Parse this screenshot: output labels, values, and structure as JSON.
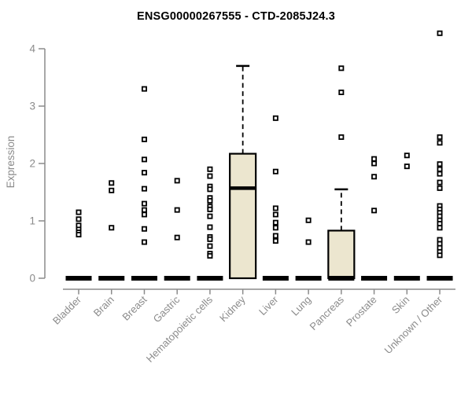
{
  "chart_data": {
    "type": "boxplot",
    "title": "ENSG00000267555 - CTD-2085J24.3",
    "ylabel": "Expression",
    "xlabel": "",
    "ylim": [
      0,
      4.3
    ],
    "yticks": [
      0,
      1,
      2,
      3,
      4
    ],
    "grid": false,
    "legend": "none",
    "colors": {
      "box_fill": "#ece6cf",
      "box_stroke": "#000000",
      "median": "#000000",
      "point_stroke": "#000000",
      "point_fill": "#ffffff",
      "axis": "#8b8b8b",
      "tick_text": "#8b8b8b",
      "title_text": "#000000"
    },
    "categories": [
      "Bladder",
      "Brain",
      "Breast",
      "Gastric",
      "Hematopoietic cells",
      "Kidney",
      "Liver",
      "Lung",
      "Pancreas",
      "Prostate",
      "Skin",
      "Unknown / Other"
    ],
    "series": [
      {
        "name": "Bladder",
        "q1": 0,
        "median": 0,
        "q3": 0,
        "whisker_low": 0,
        "whisker_high": 0,
        "points": [
          1.15,
          1.03,
          0.92,
          0.85,
          0.8,
          0.76
        ]
      },
      {
        "name": "Brain",
        "q1": 0,
        "median": 0,
        "q3": 0,
        "whisker_low": 0,
        "whisker_high": 0,
        "points": [
          1.66,
          1.53,
          0.88
        ]
      },
      {
        "name": "Breast",
        "q1": 0,
        "median": 0,
        "q3": 0,
        "whisker_low": 0,
        "whisker_high": 0,
        "points": [
          3.3,
          2.42,
          2.07,
          1.84,
          1.56,
          1.3,
          1.19,
          1.11,
          0.86,
          0.63
        ]
      },
      {
        "name": "Gastric",
        "q1": 0,
        "median": 0,
        "q3": 0,
        "whisker_low": 0,
        "whisker_high": 0,
        "points": [
          1.7,
          1.19,
          0.71
        ]
      },
      {
        "name": "Hematopoietic cells",
        "q1": 0,
        "median": 0,
        "q3": 0,
        "whisker_low": 0,
        "whisker_high": 0,
        "points": [
          1.9,
          1.78,
          1.6,
          1.55,
          1.4,
          1.35,
          1.25,
          1.2,
          1.08,
          0.89,
          0.72,
          0.68,
          0.56,
          0.43,
          0.39
        ]
      },
      {
        "name": "Kidney",
        "q1": 0,
        "median": 1.57,
        "q3": 2.17,
        "whisker_low": 0,
        "whisker_high": 3.7,
        "points": []
      },
      {
        "name": "Liver",
        "q1": 0,
        "median": 0,
        "q3": 0,
        "whisker_low": 0,
        "whisker_high": 0,
        "points": [
          2.79,
          1.86,
          1.22,
          1.11,
          0.97,
          0.88,
          0.74,
          0.65
        ]
      },
      {
        "name": "Lung",
        "q1": 0,
        "median": 0,
        "q3": 0,
        "whisker_low": 0,
        "whisker_high": 0,
        "points": [
          1.01,
          0.63
        ]
      },
      {
        "name": "Pancreas",
        "q1": 0,
        "median": 0,
        "q3": 0.83,
        "whisker_low": 0,
        "whisker_high": 1.55,
        "points": [
          3.66,
          3.24,
          2.46
        ]
      },
      {
        "name": "Prostate",
        "q1": 0,
        "median": 0,
        "q3": 0,
        "whisker_low": 0,
        "whisker_high": 0,
        "points": [
          2.08,
          2.0,
          1.77,
          1.18
        ]
      },
      {
        "name": "Skin",
        "q1": 0,
        "median": 0,
        "q3": 0,
        "whisker_low": 0,
        "whisker_high": 0,
        "points": [
          2.14,
          1.95
        ]
      },
      {
        "name": "Unknown / Other",
        "q1": 0,
        "median": 0,
        "q3": 0,
        "whisker_low": 0,
        "whisker_high": 0,
        "points": [
          4.27,
          2.46,
          2.36,
          1.99,
          1.9,
          1.82,
          1.67,
          1.57,
          1.26,
          1.2,
          1.14,
          1.08,
          1.01,
          0.95,
          0.88,
          0.67,
          0.6,
          0.53,
          0.46,
          0.4
        ]
      }
    ]
  }
}
